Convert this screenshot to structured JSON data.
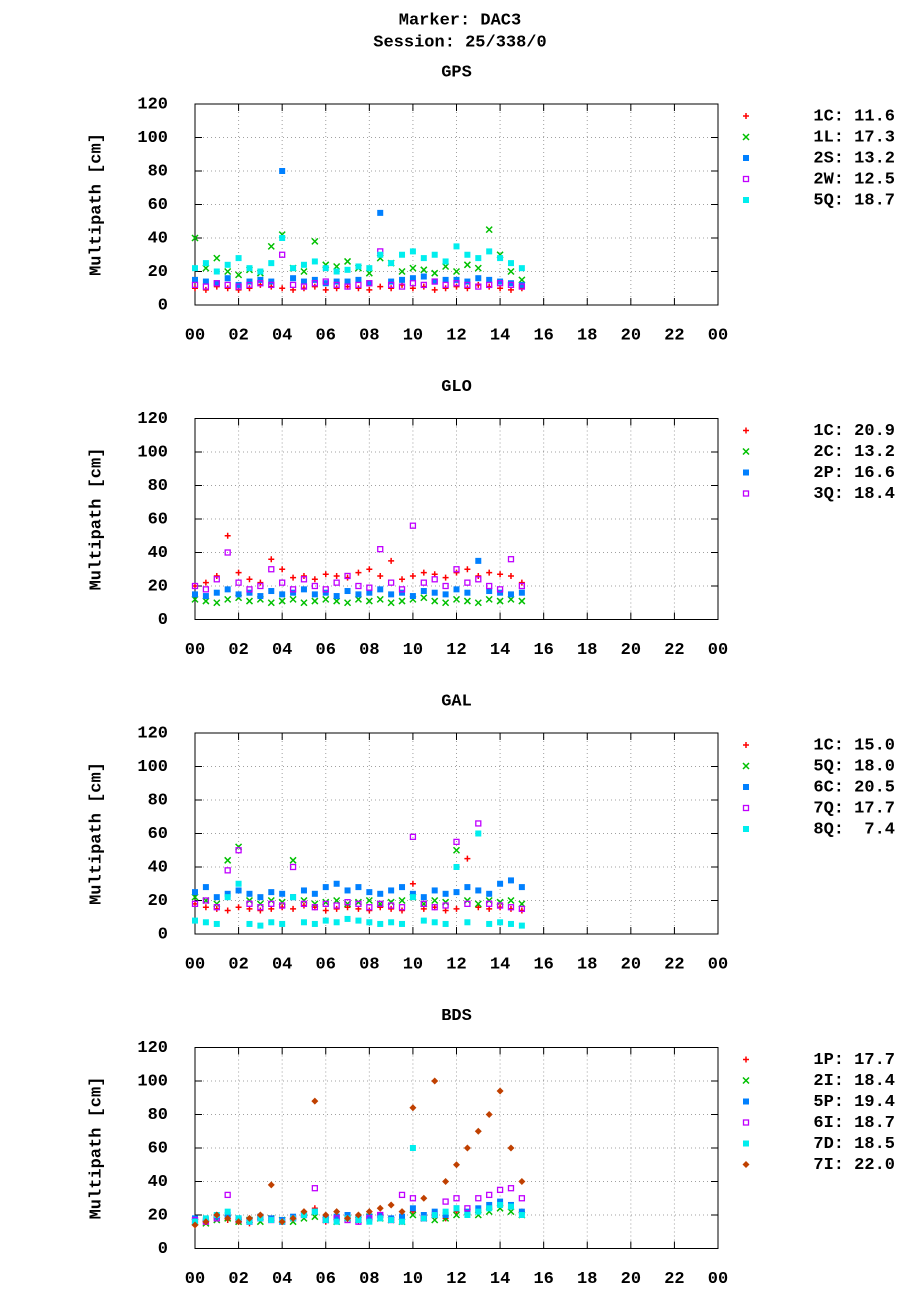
{
  "header": {
    "title": "Marker: DAC3",
    "subtitle": "Session: 25/338/0"
  },
  "chart_data": [
    {
      "type": "scatter",
      "title": "GPS",
      "ylabel": "Multipath [cm]",
      "x": [
        0,
        0.5,
        1,
        1.5,
        2,
        2.5,
        3,
        3.5,
        4,
        4.5,
        5,
        5.5,
        6,
        6.5,
        7,
        7.5,
        8,
        8.5,
        9,
        9.5,
        10,
        10.5,
        11,
        11.5,
        12,
        12.5,
        13,
        13.5,
        14,
        14.5,
        15
      ],
      "xlim": [
        0,
        24
      ],
      "ylim": [
        0,
        120
      ],
      "xticks": [
        {
          "value": 0,
          "label": "00"
        },
        {
          "value": 2,
          "label": "02"
        },
        {
          "value": 4,
          "label": "04"
        },
        {
          "value": 6,
          "label": "06"
        },
        {
          "value": 8,
          "label": "08"
        },
        10,
        12,
        14,
        16,
        18,
        20,
        22,
        {
          "value": 24,
          "label": "00"
        }
      ],
      "yticks": [
        0,
        20,
        40,
        60,
        80,
        100,
        120
      ],
      "grid": true,
      "series": [
        {
          "name": "1C: 11.6",
          "color": "#ff0000",
          "marker": "plus",
          "values": [
            10,
            9,
            11,
            10,
            9,
            10,
            12,
            11,
            10,
            9,
            10,
            11,
            9,
            10,
            11,
            10,
            9,
            11,
            10,
            12,
            10,
            11,
            9,
            10,
            11,
            10,
            12,
            11,
            10,
            9,
            10
          ]
        },
        {
          "name": "1L: 17.3",
          "color": "#00c000",
          "marker": "cross",
          "values": [
            40,
            22,
            28,
            20,
            18,
            21,
            19,
            35,
            42,
            22,
            20,
            38,
            24,
            23,
            26,
            22,
            19,
            28,
            25,
            20,
            22,
            21,
            19,
            23,
            20,
            24,
            22,
            45,
            30,
            20,
            15
          ]
        },
        {
          "name": "2S: 13.2",
          "color": "#0080ff",
          "marker": "square",
          "values": [
            15,
            14,
            13,
            16,
            12,
            14,
            15,
            14,
            80,
            16,
            14,
            15,
            13,
            14,
            14,
            15,
            13,
            55,
            14,
            15,
            16,
            17,
            14,
            15,
            15,
            14,
            16,
            15,
            14,
            13,
            12
          ]
        },
        {
          "name": "2W: 12.5",
          "color": "#c000ff",
          "marker": "open-square",
          "values": [
            12,
            11,
            13,
            12,
            11,
            12,
            13,
            12,
            30,
            12,
            11,
            13,
            14,
            12,
            11,
            12,
            13,
            32,
            12,
            11,
            13,
            12,
            14,
            12,
            13,
            12,
            11,
            12,
            13,
            12,
            11
          ]
        },
        {
          "name": "5Q: 18.7",
          "color": "#00eeee",
          "marker": "square",
          "values": [
            22,
            25,
            20,
            24,
            28,
            22,
            20,
            25,
            40,
            22,
            24,
            26,
            22,
            20,
            21,
            23,
            22,
            30,
            25,
            30,
            32,
            28,
            30,
            26,
            35,
            30,
            28,
            32,
            28,
            25,
            22
          ]
        }
      ]
    },
    {
      "type": "scatter",
      "title": "GLO",
      "ylabel": "Multipath [cm]",
      "x": [
        0,
        0.5,
        1,
        1.5,
        2,
        2.5,
        3,
        3.5,
        4,
        4.5,
        5,
        5.5,
        6,
        6.5,
        7,
        7.5,
        8,
        8.5,
        9,
        9.5,
        10,
        10.5,
        11,
        11.5,
        12,
        12.5,
        13,
        13.5,
        14,
        14.5,
        15
      ],
      "xlim": [
        0,
        24
      ],
      "ylim": [
        0,
        120
      ],
      "xticks": [
        {
          "value": 0,
          "label": "00"
        },
        {
          "value": 2,
          "label": "02"
        },
        {
          "value": 4,
          "label": "04"
        },
        {
          "value": 6,
          "label": "06"
        },
        {
          "value": 8,
          "label": "08"
        },
        10,
        12,
        14,
        16,
        18,
        20,
        22,
        {
          "value": 24,
          "label": "00"
        }
      ],
      "yticks": [
        0,
        20,
        40,
        60,
        80,
        100,
        120
      ],
      "grid": true,
      "series": [
        {
          "name": "1C: 20.9",
          "color": "#ff0000",
          "marker": "plus",
          "values": [
            20,
            22,
            26,
            50,
            28,
            24,
            22,
            36,
            30,
            25,
            26,
            24,
            27,
            26,
            25,
            28,
            30,
            26,
            35,
            24,
            26,
            28,
            27,
            25,
            28,
            30,
            26,
            28,
            27,
            26,
            22
          ]
        },
        {
          "name": "2C: 13.2",
          "color": "#00c000",
          "marker": "cross",
          "values": [
            12,
            11,
            10,
            12,
            13,
            11,
            12,
            10,
            11,
            12,
            10,
            11,
            12,
            11,
            10,
            12,
            11,
            12,
            10,
            11,
            12,
            13,
            11,
            10,
            12,
            11,
            10,
            12,
            11,
            12,
            11
          ]
        },
        {
          "name": "2P: 16.6",
          "color": "#0080ff",
          "marker": "square",
          "values": [
            15,
            14,
            16,
            18,
            15,
            16,
            14,
            17,
            15,
            16,
            18,
            15,
            16,
            14,
            17,
            15,
            16,
            18,
            15,
            16,
            14,
            17,
            16,
            15,
            18,
            16,
            35,
            17,
            16,
            15,
            16
          ]
        },
        {
          "name": "3Q: 18.4",
          "color": "#c000ff",
          "marker": "open-square",
          "values": [
            20,
            18,
            24,
            40,
            22,
            18,
            20,
            30,
            22,
            18,
            24,
            20,
            18,
            22,
            26,
            20,
            19,
            42,
            22,
            18,
            56,
            22,
            24,
            20,
            30,
            22,
            24,
            20,
            18,
            36,
            20
          ]
        }
      ]
    },
    {
      "type": "scatter",
      "title": "GAL",
      "ylabel": "Multipath [cm]",
      "x": [
        0,
        0.5,
        1,
        1.5,
        2,
        2.5,
        3,
        3.5,
        4,
        4.5,
        5,
        5.5,
        6,
        6.5,
        7,
        7.5,
        8,
        8.5,
        9,
        9.5,
        10,
        10.5,
        11,
        11.5,
        12,
        12.5,
        13,
        13.5,
        14,
        14.5,
        15
      ],
      "xlim": [
        0,
        24
      ],
      "ylim": [
        0,
        120
      ],
      "xticks": [
        {
          "value": 0,
          "label": "00"
        },
        {
          "value": 2,
          "label": "02"
        },
        {
          "value": 4,
          "label": "04"
        },
        {
          "value": 6,
          "label": "06"
        },
        {
          "value": 8,
          "label": "08"
        },
        10,
        12,
        14,
        16,
        18,
        20,
        22,
        {
          "value": 24,
          "label": "00"
        }
      ],
      "yticks": [
        0,
        20,
        40,
        60,
        80,
        100,
        120
      ],
      "grid": true,
      "series": [
        {
          "name": "1C: 15.0",
          "color": "#ff0000",
          "marker": "plus",
          "values": [
            18,
            16,
            15,
            14,
            16,
            15,
            14,
            15,
            16,
            15,
            17,
            16,
            14,
            15,
            16,
            15,
            14,
            16,
            15,
            14,
            30,
            15,
            16,
            14,
            15,
            45,
            16,
            15,
            16,
            15,
            14
          ]
        },
        {
          "name": "5Q: 18.0",
          "color": "#00c000",
          "marker": "cross",
          "values": [
            22,
            20,
            18,
            44,
            52,
            20,
            18,
            20,
            19,
            44,
            20,
            18,
            19,
            20,
            18,
            19,
            20,
            18,
            19,
            20,
            22,
            18,
            20,
            19,
            50,
            20,
            18,
            20,
            19,
            20,
            18
          ]
        },
        {
          "name": "6C: 20.5",
          "color": "#0080ff",
          "marker": "square",
          "values": [
            25,
            28,
            22,
            24,
            26,
            24,
            22,
            25,
            24,
            22,
            26,
            24,
            28,
            30,
            26,
            28,
            25,
            24,
            26,
            28,
            24,
            22,
            26,
            24,
            25,
            28,
            26,
            24,
            30,
            32,
            28
          ]
        },
        {
          "name": "7Q: 17.7",
          "color": "#c000ff",
          "marker": "open-square",
          "values": [
            18,
            20,
            16,
            38,
            50,
            18,
            16,
            18,
            17,
            40,
            18,
            16,
            18,
            17,
            19,
            18,
            16,
            18,
            17,
            16,
            58,
            18,
            16,
            17,
            55,
            18,
            66,
            18,
            17,
            16,
            15
          ]
        },
        {
          "name": "8Q:  7.4",
          "color": "#00eeee",
          "marker": "square",
          "values": [
            8,
            7,
            6,
            22,
            30,
            6,
            5,
            7,
            6,
            22,
            7,
            6,
            8,
            7,
            9,
            8,
            7,
            6,
            7,
            6,
            22,
            8,
            7,
            6,
            40,
            7,
            60,
            6,
            7,
            6,
            5
          ]
        }
      ]
    },
    {
      "type": "scatter",
      "title": "BDS",
      "ylabel": "Multipath [cm]",
      "x": [
        0,
        0.5,
        1,
        1.5,
        2,
        2.5,
        3,
        3.5,
        4,
        4.5,
        5,
        5.5,
        6,
        6.5,
        7,
        7.5,
        8,
        8.5,
        9,
        9.5,
        10,
        10.5,
        11,
        11.5,
        12,
        12.5,
        13,
        13.5,
        14,
        14.5,
        15
      ],
      "xlim": [
        0,
        24
      ],
      "ylim": [
        0,
        120
      ],
      "xticks": [
        {
          "value": 0,
          "label": "00"
        },
        {
          "value": 2,
          "label": "02"
        },
        {
          "value": 4,
          "label": "04"
        },
        {
          "value": 6,
          "label": "06"
        },
        {
          "value": 8,
          "label": "08"
        },
        10,
        12,
        14,
        16,
        18,
        20,
        22,
        {
          "value": 24,
          "label": "00"
        }
      ],
      "yticks": [
        0,
        20,
        40,
        60,
        80,
        100,
        120
      ],
      "grid": true,
      "series": [
        {
          "name": "1P: 17.7",
          "color": "#ff0000",
          "marker": "plus",
          "values": [
            15,
            16,
            18,
            17,
            16,
            15,
            18,
            17,
            16,
            18,
            20,
            24,
            16,
            18,
            17,
            16,
            18,
            20,
            17,
            16,
            22,
            18,
            20,
            18,
            22,
            20,
            22,
            24,
            26,
            25,
            22
          ]
        },
        {
          "name": "2I: 18.4",
          "color": "#00c000",
          "marker": "cross",
          "values": [
            16,
            15,
            17,
            18,
            16,
            17,
            16,
            18,
            17,
            16,
            18,
            19,
            17,
            16,
            18,
            17,
            19,
            18,
            17,
            16,
            20,
            18,
            17,
            18,
            20,
            22,
            20,
            22,
            24,
            22,
            20
          ]
        },
        {
          "name": "5P: 19.4",
          "color": "#0080ff",
          "marker": "square",
          "values": [
            18,
            17,
            19,
            20,
            18,
            17,
            19,
            18,
            17,
            19,
            20,
            22,
            18,
            19,
            20,
            18,
            19,
            20,
            18,
            19,
            24,
            20,
            22,
            20,
            24,
            22,
            24,
            26,
            28,
            26,
            22
          ]
        },
        {
          "name": "6I: 18.7",
          "color": "#c000ff",
          "marker": "open-square",
          "values": [
            17,
            16,
            18,
            32,
            17,
            16,
            18,
            17,
            16,
            18,
            20,
            36,
            17,
            18,
            17,
            16,
            18,
            20,
            17,
            32,
            30,
            18,
            20,
            28,
            30,
            24,
            30,
            32,
            35,
            36,
            30
          ]
        },
        {
          "name": "7D: 18.5",
          "color": "#00eeee",
          "marker": "square",
          "values": [
            16,
            18,
            20,
            22,
            18,
            16,
            18,
            17,
            16,
            18,
            20,
            22,
            17,
            16,
            18,
            17,
            16,
            18,
            17,
            16,
            60,
            18,
            20,
            22,
            24,
            20,
            22,
            24,
            26,
            25,
            20
          ]
        },
        {
          "name": "7I: 22.0",
          "color": "#c04000",
          "marker": "diamond",
          "values": [
            14,
            16,
            20,
            18,
            16,
            18,
            20,
            38,
            16,
            18,
            22,
            88,
            20,
            22,
            18,
            20,
            22,
            24,
            26,
            22,
            84,
            30,
            100,
            40,
            50,
            60,
            70,
            80,
            94,
            60,
            40
          ]
        }
      ]
    }
  ]
}
